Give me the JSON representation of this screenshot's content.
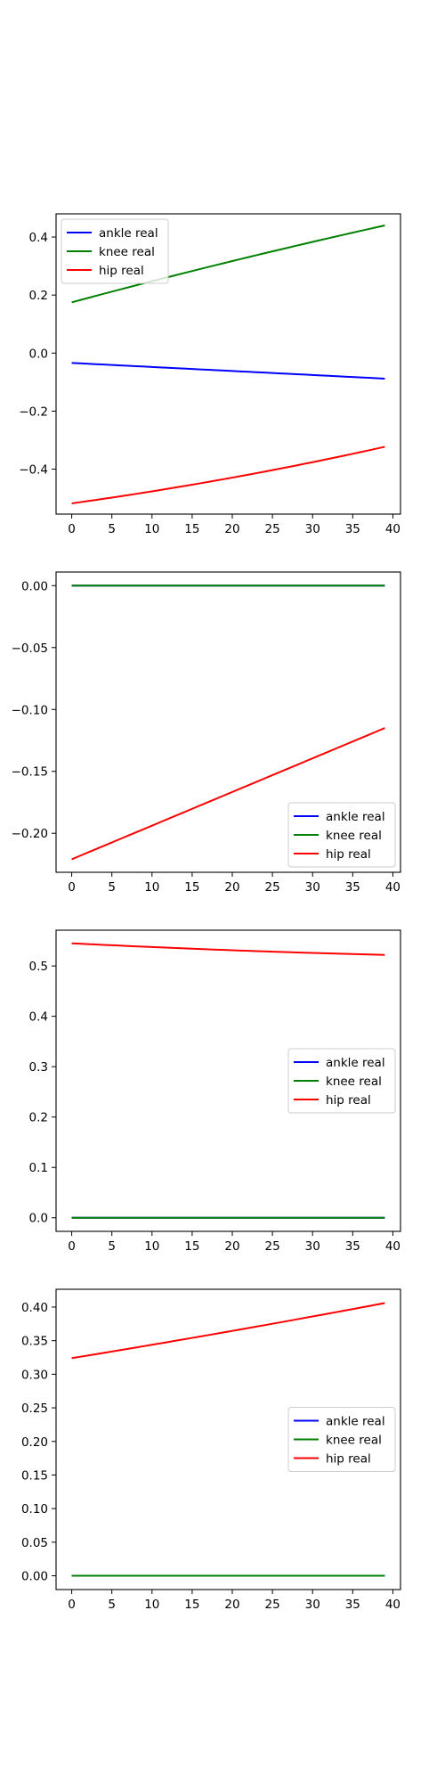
{
  "chart_data": [
    {
      "type": "line",
      "title": "",
      "xlabel": "",
      "ylabel": "",
      "xlim": [
        -1.95,
        40.95
      ],
      "ylim": [
        -0.555,
        0.48
      ],
      "xticks": [
        0,
        5,
        10,
        15,
        20,
        25,
        30,
        35,
        40
      ],
      "yticks": [
        -0.4,
        -0.2,
        0.0,
        0.2,
        0.4
      ],
      "ytick_labels": [
        "−0.4",
        "−0.2",
        "0.0",
        "0.2",
        "0.4"
      ],
      "grid": false,
      "legend": "upper left",
      "series": [
        {
          "name": "ankle real",
          "color": "#0000ff",
          "x": [
            0,
            39
          ],
          "y": [
            -0.034,
            -0.088
          ],
          "curve": 0.0
        },
        {
          "name": "knee real",
          "color": "#008000",
          "x": [
            0,
            39
          ],
          "y": [
            0.175,
            0.44
          ],
          "curve": -0.025
        },
        {
          "name": "hip real",
          "color": "#ff0000",
          "x": [
            0,
            39
          ],
          "y": [
            -0.518,
            -0.323
          ],
          "curve": 0.045
        }
      ]
    },
    {
      "type": "line",
      "title": "",
      "xlabel": "",
      "ylabel": "",
      "xlim": [
        -1.95,
        40.95
      ],
      "ylim": [
        -0.2315,
        0.011
      ],
      "xticks": [
        0,
        5,
        10,
        15,
        20,
        25,
        30,
        35,
        40
      ],
      "yticks": [
        -0.2,
        -0.15,
        -0.1,
        -0.05,
        0.0
      ],
      "ytick_labels": [
        "−0.20",
        "−0.15",
        "−0.10",
        "−0.05",
        "0.00"
      ],
      "grid": false,
      "legend": "lower right",
      "series": [
        {
          "name": "ankle real",
          "color": "#0000ff",
          "x": [
            0,
            39
          ],
          "y": [
            0.0,
            0.0
          ],
          "curve": 0.0
        },
        {
          "name": "knee real",
          "color": "#008000",
          "x": [
            0,
            39
          ],
          "y": [
            0.0,
            0.0
          ],
          "curve": 0.0
        },
        {
          "name": "hip real",
          "color": "#ff0000",
          "x": [
            0,
            39
          ],
          "y": [
            -0.221,
            -0.115
          ],
          "curve": 0.0
        }
      ]
    },
    {
      "type": "line",
      "title": "",
      "xlabel": "",
      "ylabel": "",
      "xlim": [
        -1.95,
        40.95
      ],
      "ylim": [
        -0.027,
        0.571
      ],
      "xticks": [
        0,
        5,
        10,
        15,
        20,
        25,
        30,
        35,
        40
      ],
      "yticks": [
        0.0,
        0.1,
        0.2,
        0.3,
        0.4,
        0.5
      ],
      "ytick_labels": [
        "0.0",
        "0.1",
        "0.2",
        "0.3",
        "0.4",
        "0.5"
      ],
      "grid": false,
      "legend": "center right",
      "series": [
        {
          "name": "ankle real",
          "color": "#0000ff",
          "x": [
            0,
            39
          ],
          "y": [
            0.0,
            0.0
          ],
          "curve": 0.0
        },
        {
          "name": "knee real",
          "color": "#008000",
          "x": [
            0,
            39
          ],
          "y": [
            0.0,
            0.0
          ],
          "curve": 0.0
        },
        {
          "name": "hip real",
          "color": "#ff0000",
          "x": [
            0,
            39
          ],
          "y": [
            0.545,
            0.522
          ],
          "curve": 0.008
        }
      ]
    },
    {
      "type": "line",
      "title": "",
      "xlabel": "",
      "ylabel": "",
      "xlim": [
        -1.95,
        40.95
      ],
      "ylim": [
        -0.0205,
        0.4265
      ],
      "xticks": [
        0,
        5,
        10,
        15,
        20,
        25,
        30,
        35,
        40
      ],
      "yticks": [
        0.0,
        0.05,
        0.1,
        0.15,
        0.2,
        0.25,
        0.3,
        0.35,
        0.4
      ],
      "ytick_labels": [
        "0.00",
        "0.05",
        "0.10",
        "0.15",
        "0.20",
        "0.25",
        "0.30",
        "0.35",
        "0.40"
      ],
      "grid": false,
      "legend": "center right",
      "series": [
        {
          "name": "ankle real",
          "color": "#0000ff",
          "x": [
            0,
            39
          ],
          "y": [
            0.0,
            0.0
          ],
          "curve": 0.0
        },
        {
          "name": "knee real",
          "color": "#008000",
          "x": [
            0,
            39
          ],
          "y": [
            0.0,
            0.0
          ],
          "curve": 0.0
        },
        {
          "name": "hip real",
          "color": "#ff0000",
          "x": [
            0,
            39
          ],
          "y": [
            0.324,
            0.406
          ],
          "curve": 0.006
        }
      ]
    }
  ]
}
